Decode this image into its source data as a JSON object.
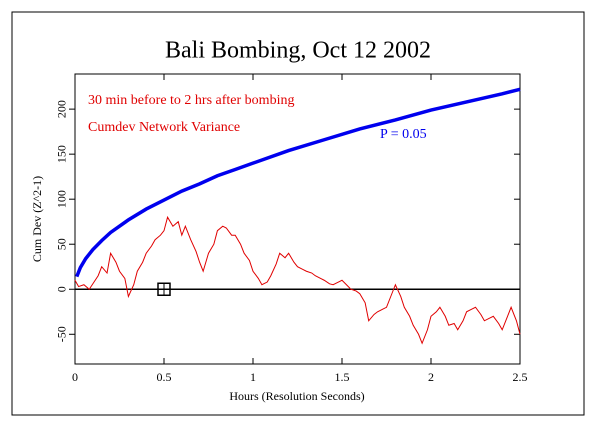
{
  "chart_data": {
    "type": "line",
    "title": "Bali Bombing, Oct 12 2002",
    "subtitle": "30 min before to 2 hrs after bombing",
    "xlabel": "Hours (Resolution Seconds)",
    "ylabel": "Cum Dev (Z^2-1)",
    "xlim": [
      0,
      2.5
    ],
    "ylim": [
      -83,
      239
    ],
    "xticks": [
      0,
      0.5,
      1,
      1.5,
      2,
      2.5
    ],
    "yticks": [
      -50,
      0,
      50,
      100,
      150,
      200
    ],
    "hline": 0,
    "marker": {
      "x": 0.5,
      "y": 0
    },
    "series": [
      {
        "name": "Cumdev Network Variance",
        "color": "#e00000",
        "x": [
          0,
          0.02,
          0.05,
          0.08,
          0.1,
          0.13,
          0.15,
          0.18,
          0.2,
          0.23,
          0.25,
          0.28,
          0.3,
          0.33,
          0.35,
          0.38,
          0.4,
          0.43,
          0.45,
          0.48,
          0.5,
          0.52,
          0.55,
          0.58,
          0.6,
          0.62,
          0.65,
          0.68,
          0.7,
          0.72,
          0.75,
          0.78,
          0.8,
          0.83,
          0.85,
          0.88,
          0.9,
          0.93,
          0.95,
          0.98,
          1.0,
          1.03,
          1.05,
          1.08,
          1.1,
          1.13,
          1.15,
          1.18,
          1.2,
          1.23,
          1.25,
          1.28,
          1.3,
          1.33,
          1.35,
          1.38,
          1.4,
          1.43,
          1.45,
          1.48,
          1.5,
          1.53,
          1.55,
          1.58,
          1.6,
          1.63,
          1.65,
          1.68,
          1.7,
          1.73,
          1.75,
          1.78,
          1.8,
          1.83,
          1.85,
          1.88,
          1.9,
          1.93,
          1.95,
          1.98,
          2.0,
          2.03,
          2.05,
          2.08,
          2.1,
          2.13,
          2.15,
          2.18,
          2.2,
          2.23,
          2.25,
          2.28,
          2.3,
          2.33,
          2.35,
          2.38,
          2.4,
          2.43,
          2.45,
          2.48,
          2.5
        ],
        "values": [
          10,
          3,
          5,
          0,
          6,
          15,
          25,
          18,
          40,
          30,
          20,
          12,
          -8,
          5,
          20,
          30,
          40,
          48,
          55,
          60,
          65,
          80,
          70,
          75,
          60,
          70,
          55,
          42,
          30,
          20,
          40,
          50,
          65,
          70,
          68,
          60,
          60,
          50,
          40,
          32,
          20,
          12,
          5,
          8,
          15,
          28,
          40,
          35,
          40,
          30,
          25,
          22,
          20,
          18,
          15,
          12,
          10,
          6,
          5,
          8,
          10,
          4,
          0,
          -2,
          -5,
          -15,
          -35,
          -28,
          -25,
          -22,
          -20,
          -5,
          5,
          -8,
          -20,
          -30,
          -40,
          -50,
          -60,
          -45,
          -30,
          -25,
          -20,
          -30,
          -40,
          -38,
          -45,
          -35,
          -25,
          -22,
          -20,
          -28,
          -35,
          -32,
          -30,
          -38,
          -45,
          -30,
          -20,
          -35,
          -50
        ]
      },
      {
        "name": "P = 0.05",
        "color": "#0000ee",
        "x": [
          0.01,
          0.03,
          0.06,
          0.1,
          0.15,
          0.2,
          0.3,
          0.4,
          0.5,
          0.6,
          0.7,
          0.8,
          0.9,
          1.0,
          1.2,
          1.4,
          1.6,
          1.8,
          2.0,
          2.2,
          2.4,
          2.5
        ],
        "values": [
          14,
          24,
          34,
          44,
          54,
          63,
          77,
          89,
          99,
          109,
          117,
          126,
          133,
          140,
          154,
          166,
          178,
          188,
          199,
          208,
          217,
          222
        ]
      }
    ]
  }
}
